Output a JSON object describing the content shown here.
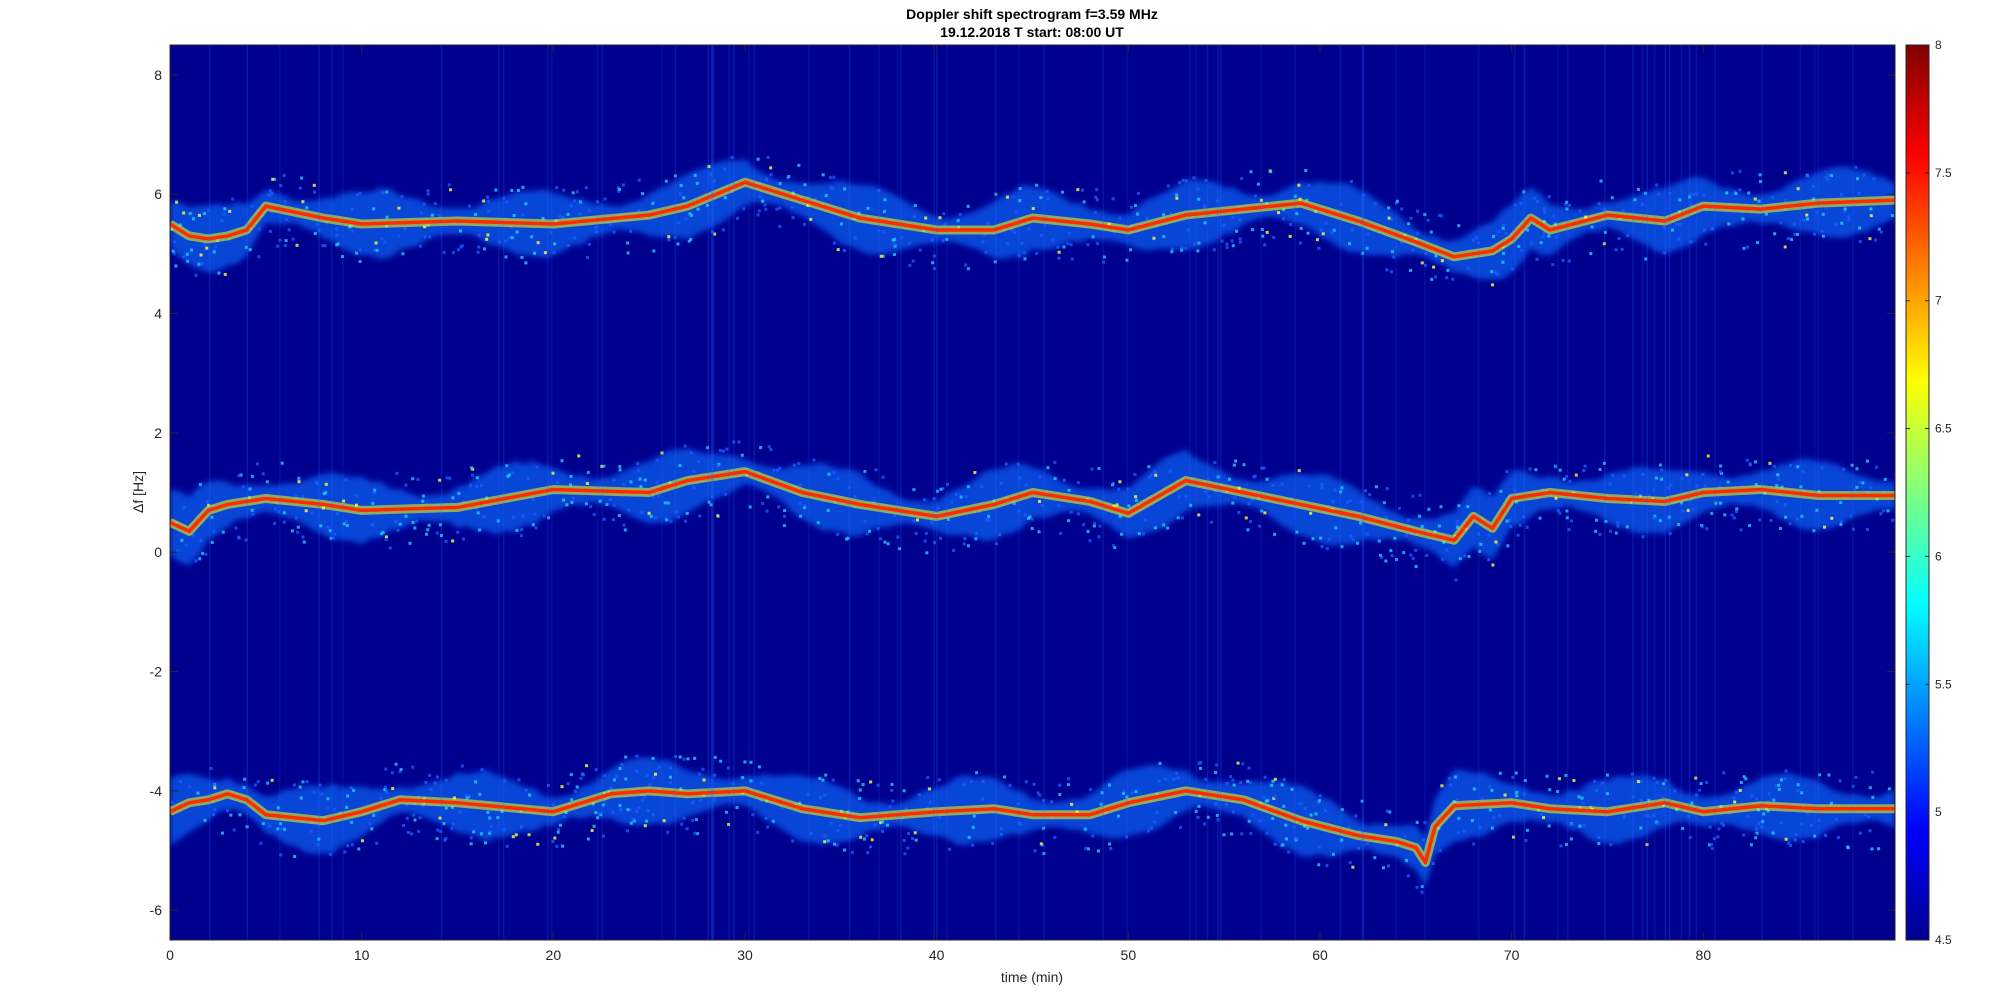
{
  "chart_data": {
    "type": "heatmap",
    "title": "Doppler shift spectrogram f=3.59 MHz",
    "subtitle": "19.12.2018   T start: 08:00 UT",
    "xlabel": "time (min)",
    "ylabel": "Δf [Hz]",
    "xlim": [
      0,
      90
    ],
    "ylim": [
      -6.5,
      8.5
    ],
    "xticks": [
      0,
      10,
      20,
      30,
      40,
      50,
      60,
      70,
      80
    ],
    "yticks": [
      -6,
      -4,
      -2,
      0,
      2,
      4,
      6,
      8
    ],
    "colorbar": {
      "colormap": "jet",
      "clim": [
        4.5,
        8
      ],
      "ticks": [
        4.5,
        5,
        5.5,
        6,
        6.5,
        7,
        7.5,
        8
      ]
    },
    "background_color": "#00008f",
    "series": [
      {
        "x": [
          0,
          1,
          2,
          3,
          4,
          5,
          8,
          10,
          15,
          20,
          25,
          27,
          30,
          33,
          36,
          40,
          43,
          45,
          48,
          50,
          53,
          56,
          59,
          62,
          65,
          67,
          69,
          70,
          71,
          72,
          75,
          78,
          80,
          83,
          86,
          90
        ],
        "y": [
          5.5,
          5.3,
          5.25,
          5.3,
          5.4,
          5.8,
          5.6,
          5.5,
          5.55,
          5.5,
          5.65,
          5.8,
          6.2,
          5.9,
          5.6,
          5.4,
          5.4,
          5.6,
          5.5,
          5.4,
          5.65,
          5.75,
          5.85,
          5.55,
          5.2,
          4.95,
          5.05,
          5.25,
          5.6,
          5.4,
          5.65,
          5.55,
          5.8,
          5.75,
          5.85,
          5.9
        ]
      },
      {
        "x": [
          0,
          1,
          2,
          3,
          4,
          5,
          8,
          10,
          15,
          20,
          25,
          27,
          30,
          33,
          36,
          40,
          43,
          45,
          48,
          50,
          53,
          56,
          59,
          62,
          65,
          67,
          68,
          69,
          70,
          72,
          75,
          78,
          80,
          83,
          86,
          90
        ],
        "y": [
          0.5,
          0.35,
          0.7,
          0.8,
          0.85,
          0.9,
          0.8,
          0.7,
          0.75,
          1.05,
          1.0,
          1.2,
          1.35,
          1.0,
          0.8,
          0.6,
          0.8,
          1.0,
          0.85,
          0.65,
          1.2,
          1.0,
          0.8,
          0.6,
          0.35,
          0.2,
          0.6,
          0.4,
          0.9,
          1.0,
          0.9,
          0.85,
          1.0,
          1.05,
          0.95,
          0.95
        ]
      },
      {
        "x": [
          0,
          1,
          2,
          3,
          4,
          5,
          8,
          10,
          12,
          15,
          20,
          23,
          25,
          27,
          30,
          33,
          36,
          40,
          43,
          45,
          48,
          50,
          53,
          56,
          59,
          62,
          64,
          65,
          65.5,
          66,
          67,
          70,
          72,
          75,
          78,
          80,
          83,
          86,
          90
        ],
        "y": [
          -4.35,
          -4.2,
          -4.15,
          -4.05,
          -4.15,
          -4.4,
          -4.5,
          -4.35,
          -4.15,
          -4.2,
          -4.35,
          -4.05,
          -4.0,
          -4.05,
          -4.0,
          -4.3,
          -4.45,
          -4.35,
          -4.3,
          -4.4,
          -4.4,
          -4.2,
          -4.0,
          -4.15,
          -4.5,
          -4.75,
          -4.85,
          -4.95,
          -5.2,
          -4.6,
          -4.25,
          -4.2,
          -4.3,
          -4.35,
          -4.2,
          -4.35,
          -4.25,
          -4.3,
          -4.3
        ]
      }
    ]
  }
}
